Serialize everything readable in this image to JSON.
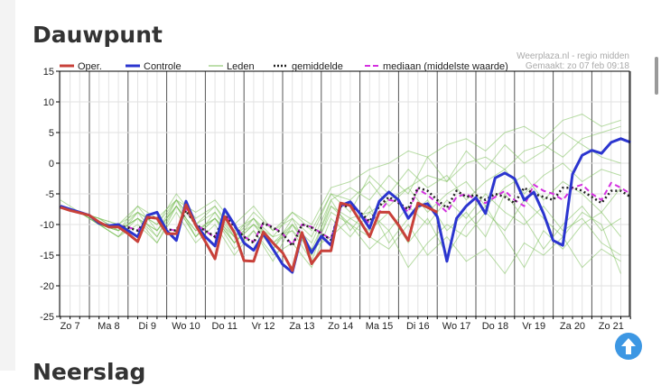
{
  "page": {
    "title": "Dauwpunt",
    "next_section": "Neerslag"
  },
  "source": {
    "line1": "Weerplaza.nl - regio midden",
    "line2": "Gemaakt: zo 07 feb 09:18"
  },
  "colors": {
    "oper": "#c8413a",
    "controle": "#2b35cf",
    "leden": "#7cbf5a",
    "gemiddelde": "#222222",
    "mediaan": "#d430e0",
    "accent": "#3d97e3"
  },
  "chart_data": {
    "type": "line",
    "title": "Dauwpunt",
    "ylabel": "",
    "xlabel": "",
    "ylim": [
      -25,
      15
    ],
    "yticks": [
      15,
      10,
      5,
      0,
      -5,
      -10,
      -15,
      -20,
      -25
    ],
    "xlim_days": [
      7.25,
      22
    ],
    "x_start_day": 7.25,
    "x_step_days": 0.25,
    "xticks": [
      {
        "day": 7,
        "label": "Zo 7"
      },
      {
        "day": 8,
        "label": "Ma 8"
      },
      {
        "day": 9,
        "label": "Di 9"
      },
      {
        "day": 10,
        "label": "Wo 10"
      },
      {
        "day": 11,
        "label": "Do 11"
      },
      {
        "day": 12,
        "label": "Vr 12"
      },
      {
        "day": 13,
        "label": "Za 13"
      },
      {
        "day": 14,
        "label": "Zo 14"
      },
      {
        "day": 15,
        "label": "Ma 15"
      },
      {
        "day": 16,
        "label": "Di 16"
      },
      {
        "day": 17,
        "label": "Wo 17"
      },
      {
        "day": 18,
        "label": "Do 18"
      },
      {
        "day": 19,
        "label": "Vr 19"
      },
      {
        "day": 20,
        "label": "Za 20"
      },
      {
        "day": 21,
        "label": "Zo 21"
      }
    ],
    "grid": true,
    "legend": {
      "placement": "top",
      "entries": [
        "Oper.",
        "Controle",
        "Leden",
        "gemiddelde",
        "mediaan (middelste waarde)"
      ]
    },
    "series": [
      {
        "name": "Oper.",
        "values": [
          -7.2,
          -7.7,
          -8.1,
          -8.5,
          -9.6,
          -10.4,
          -10.4,
          -11.5,
          -12.8,
          -8.8,
          -9,
          -11.5,
          -11.5,
          -6.8,
          -10.1,
          -12.8,
          -15.6,
          -8.7,
          -11.3,
          -15.9,
          -16,
          -11.2,
          -13,
          -14.6,
          -17.5,
          -11.3,
          -16.4,
          -14.3,
          -14.3,
          -6.5,
          -6.9,
          -9.4,
          -12,
          -8,
          -8,
          -10.1,
          -12.6,
          -6.5,
          -7.2,
          -8
        ]
      },
      {
        "name": "Controle",
        "values": [
          -7,
          -7.5,
          -8,
          -8.5,
          -9.8,
          -10.2,
          -10,
          -11,
          -12,
          -8.5,
          -8,
          -11,
          -12.6,
          -6.2,
          -10,
          -12,
          -13.5,
          -7.5,
          -10,
          -13,
          -14.2,
          -11.5,
          -14,
          -16.5,
          -17.8,
          -11.5,
          -14.6,
          -11.9,
          -13.4,
          -6.9,
          -6.3,
          -8.2,
          -10.6,
          -6.2,
          -4.7,
          -6,
          -9,
          -7,
          -6.6,
          -8.7,
          -16,
          -9,
          -7,
          -5.6,
          -8.2,
          -2.4,
          -1.6,
          -2.5,
          -6,
          -4.7,
          -8.2,
          -12.6,
          -13.4,
          -1.8,
          1.3,
          2.1,
          1.6,
          3.4,
          4,
          3.4
        ]
      },
      {
        "name": "gemiddelde",
        "values": [
          -7,
          -7.6,
          -8,
          -8.5,
          -9.8,
          -10.2,
          -10.2,
          -10.5,
          -11,
          -9,
          -8.8,
          -10.8,
          -11,
          -7.7,
          -10,
          -11,
          -12,
          -8.5,
          -10.3,
          -12,
          -13,
          -9.8,
          -10.5,
          -11.5,
          -13.5,
          -10,
          -10.5,
          -11.5,
          -12.5,
          -7,
          -7,
          -8,
          -9.5,
          -7,
          -5.5,
          -6.5,
          -7.5,
          -4,
          -4.5,
          -6,
          -7.3,
          -4.5,
          -5.5,
          -5.2,
          -6,
          -5,
          -5.5,
          -6.5,
          -4,
          -5,
          -5.5,
          -6,
          -4,
          -4,
          -4.5,
          -5.5,
          -6.5,
          -4.5,
          -4.5,
          -5.5
        ]
      },
      {
        "name": "mediaan (middelste waarde)",
        "values": [
          -7,
          -7.6,
          -8,
          -8.5,
          -9.8,
          -10.2,
          -10.2,
          -10.4,
          -11,
          -9,
          -8.7,
          -10.7,
          -11,
          -7.5,
          -10,
          -11,
          -12.2,
          -8.4,
          -10.2,
          -12,
          -12.8,
          -9.7,
          -10.4,
          -11.5,
          -13.3,
          -10,
          -10.4,
          -11.4,
          -12.4,
          -7,
          -6.8,
          -8.2,
          -9.8,
          -8,
          -6,
          -6.3,
          -8,
          -4.2,
          -5.2,
          -6.5,
          -8,
          -5.5,
          -5,
          -6,
          -6.5,
          -5.5,
          -4.5,
          -6,
          -7,
          -3.5,
          -4.5,
          -5,
          -6,
          -4,
          -3.5,
          -5,
          -6,
          -3.2,
          -4,
          -5
        ]
      }
    ],
    "members": {
      "name": "Leden",
      "x_start_day": 7.25,
      "x_step_days": 0.5,
      "values": [
        [
          -7,
          -8,
          -10,
          -11,
          -9,
          -11,
          -7,
          -11,
          -9,
          -12,
          -10,
          -13,
          -11,
          -14,
          -12,
          -9,
          -8,
          -6,
          -4,
          -2,
          -3,
          0,
          1,
          -1,
          2,
          3,
          1,
          4,
          5,
          6
        ],
        [
          -7,
          -8,
          -10,
          -12,
          -8,
          -12,
          -6,
          -12,
          -8,
          -13,
          -9,
          -14,
          -10,
          -15,
          -8,
          -10,
          -12,
          -14,
          -10,
          -15,
          -12,
          -16,
          -14,
          -18,
          -13,
          -15,
          -12,
          -17,
          -14,
          -16
        ],
        [
          -6,
          -8,
          -9,
          -10,
          -8,
          -10,
          -5,
          -9,
          -7,
          -11,
          -9,
          -12,
          -8,
          -10,
          -4,
          -3,
          -1,
          0,
          2,
          1,
          3,
          4,
          2,
          5,
          6,
          4,
          7,
          8,
          6,
          7
        ],
        [
          -7,
          -8,
          -10,
          -12,
          -10,
          -13,
          -8,
          -13,
          -10,
          -15,
          -11,
          -15,
          -13,
          -17,
          -9,
          -12,
          -8,
          -11,
          -7,
          -10,
          -6,
          -9,
          -5,
          -8,
          -10,
          -7,
          -11,
          -9,
          -13,
          -15
        ],
        [
          -7,
          -8,
          -9,
          -11,
          -8,
          -10,
          -6,
          -10,
          -7,
          -12,
          -8,
          -11,
          -9,
          -12,
          -5,
          -8,
          -2,
          -5,
          -1,
          -4,
          -2,
          -6,
          -3,
          -1,
          -5,
          -2,
          0,
          -3,
          -1,
          -2
        ],
        [
          -7,
          -8,
          -10,
          -11,
          -9,
          -12,
          -7,
          -12,
          -9,
          -14,
          -11,
          -16,
          -10,
          -14,
          -7,
          -10,
          -14,
          -11,
          -17,
          -13,
          -10,
          -12,
          -8,
          -11,
          -6,
          -9,
          -12,
          -8,
          -10,
          -18
        ],
        [
          -7,
          -8,
          -9,
          -10,
          -7,
          -9,
          -6,
          -8,
          -6,
          -10,
          -7,
          -11,
          -8,
          -11,
          -5,
          -6,
          -3,
          -7,
          -4,
          -8,
          -5,
          -3,
          -7,
          -4,
          -2,
          -6,
          -3,
          -5,
          -8,
          -4
        ],
        [
          -7,
          -8,
          -10,
          -11,
          -9,
          -13,
          -7,
          -12,
          -9,
          -13,
          -10,
          -14,
          -9,
          -15,
          -6,
          -11,
          -7,
          -13,
          -9,
          -6,
          -11,
          -8,
          -12,
          -5,
          -9,
          -14,
          -10,
          -7,
          -11,
          -9
        ],
        [
          -7,
          -8,
          -9,
          -11,
          -7,
          -11,
          -6,
          -10,
          -8,
          -12,
          -9,
          -13,
          -10,
          -13,
          -6,
          -4,
          -6,
          -2,
          -5,
          1,
          -3,
          2,
          -1,
          3,
          0,
          2,
          5,
          3,
          1,
          0
        ],
        [
          -7,
          -8,
          -10,
          -12,
          -9,
          -11,
          -7,
          -11,
          -9,
          -13,
          -10,
          -12,
          -11,
          -16,
          -7,
          -9,
          -11,
          -8,
          -13,
          -9,
          -15,
          -10,
          -7,
          -12,
          -17,
          -11,
          -14,
          -10,
          -8,
          -12
        ]
      ]
    }
  }
}
